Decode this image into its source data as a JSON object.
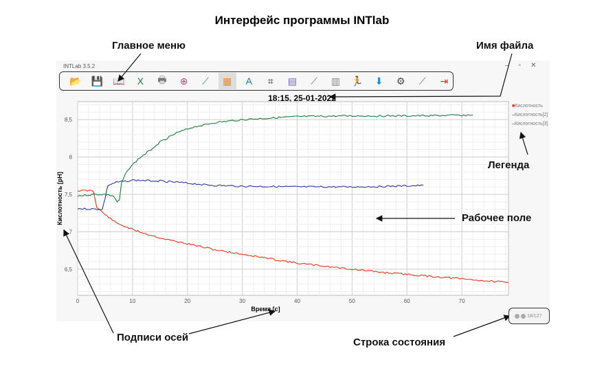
{
  "figure_title": "Интерфейс программы INTlab",
  "annotations": {
    "main_menu": "Главное меню",
    "file_name": "Имя файла",
    "legend": "Легенда",
    "work_area": "Рабочее поле",
    "axis_labels": "Подписи осей",
    "status_bar": "Строка состояния"
  },
  "window": {
    "title": "INTLab 3.5.2",
    "file_name": "18:15, 25-01-2022"
  },
  "toolbar": [
    {
      "icon": "open-folder-icon",
      "glyph": "📂",
      "color": "#d9941e"
    },
    {
      "icon": "save-icon",
      "glyph": "💾",
      "color": "#444"
    },
    {
      "icon": "book-icon",
      "glyph": "📖",
      "color": "#b5652b"
    },
    {
      "icon": "excel-icon",
      "glyph": "X",
      "color": "#1d7a3a"
    },
    {
      "icon": "print-icon",
      "glyph": "🖶",
      "color": "#777"
    },
    {
      "icon": "zoom-icon",
      "glyph": "⊕",
      "color": "#e0337a"
    },
    {
      "icon": "chart-line-icon",
      "glyph": "⟋",
      "color": "#3a7bd5"
    },
    {
      "icon": "grid-icon",
      "glyph": "▦",
      "color": "#f08a24"
    },
    {
      "icon": "font-icon",
      "glyph": "A",
      "color": "#1e6fd0"
    },
    {
      "icon": "crop-icon",
      "glyph": "⌗",
      "color": "#222"
    },
    {
      "icon": "calculator-icon",
      "glyph": "▤",
      "color": "#6a6ab0"
    },
    {
      "icon": "chart-options-icon",
      "glyph": "⟋",
      "color": "#3a7bd5"
    },
    {
      "icon": "table-icon",
      "glyph": "▥",
      "color": "#888"
    },
    {
      "icon": "run-icon",
      "glyph": "🏃",
      "color": "#aaa"
    },
    {
      "icon": "download-icon",
      "glyph": "⬇",
      "color": "#1e90e0"
    },
    {
      "icon": "settings-icon",
      "glyph": "⚙",
      "color": "#444"
    },
    {
      "icon": "series-icon",
      "glyph": "⟋",
      "color": "#3a7bd5"
    },
    {
      "icon": "exit-icon",
      "glyph": "⇥",
      "color": "#e03030"
    }
  ],
  "status": {
    "counter": "18/127"
  },
  "chart_data": {
    "type": "line",
    "xlabel": "Время [с]",
    "ylabel": "Кислотность [pH]",
    "xlim": [
      0,
      78.5
    ],
    "ylim": [
      6.15,
      8.74
    ],
    "xticks": [
      0,
      10,
      20,
      30,
      40,
      50,
      60,
      70
    ],
    "yticks": [
      6.5,
      7,
      7.5,
      8,
      8.5
    ],
    "ytick_labels": [
      "6,5",
      "7",
      "7,5",
      "8",
      "8,5"
    ],
    "grid": true,
    "legend": "right",
    "series": [
      {
        "name": "Кислотность",
        "color": "#e8321e",
        "points": [
          [
            0,
            7.55
          ],
          [
            2.8,
            7.55
          ],
          [
            3,
            7.5
          ],
          [
            3.5,
            7.33
          ],
          [
            5,
            7.23
          ],
          [
            7,
            7.12
          ],
          [
            10,
            7.03
          ],
          [
            13,
            6.96
          ],
          [
            16,
            6.9
          ],
          [
            20,
            6.84
          ],
          [
            25,
            6.76
          ],
          [
            30,
            6.7
          ],
          [
            35,
            6.64
          ],
          [
            40,
            6.58
          ],
          [
            45,
            6.54
          ],
          [
            50,
            6.5
          ],
          [
            55,
            6.46
          ],
          [
            60,
            6.43
          ],
          [
            65,
            6.4
          ],
          [
            70,
            6.37
          ],
          [
            75,
            6.34
          ],
          [
            78.5,
            6.32
          ]
        ]
      },
      {
        "name": "Кислотность[2]",
        "color": "#2a3a9a",
        "points": [
          [
            0,
            7.31
          ],
          [
            4.5,
            7.3
          ],
          [
            5,
            7.45
          ],
          [
            5.5,
            7.62
          ],
          [
            7,
            7.66
          ],
          [
            10,
            7.69
          ],
          [
            15,
            7.68
          ],
          [
            20,
            7.65
          ],
          [
            25,
            7.62
          ],
          [
            30,
            7.61
          ],
          [
            40,
            7.6
          ],
          [
            50,
            7.6
          ],
          [
            58,
            7.61
          ],
          [
            63,
            7.62
          ]
        ]
      },
      {
        "name": "Кислотность[3]",
        "color": "#1e7a3a",
        "points": [
          [
            0,
            7.48
          ],
          [
            3,
            7.5
          ],
          [
            5,
            7.5
          ],
          [
            6.5,
            7.48
          ],
          [
            7.2,
            7.4
          ],
          [
            7.6,
            7.42
          ],
          [
            8,
            7.65
          ],
          [
            9,
            7.82
          ],
          [
            11,
            7.97
          ],
          [
            13,
            8.08
          ],
          [
            15,
            8.2
          ],
          [
            18,
            8.32
          ],
          [
            21,
            8.4
          ],
          [
            25,
            8.46
          ],
          [
            30,
            8.5
          ],
          [
            35,
            8.52
          ],
          [
            40,
            8.54
          ],
          [
            50,
            8.55
          ],
          [
            60,
            8.55
          ],
          [
            72,
            8.56
          ]
        ]
      }
    ]
  }
}
